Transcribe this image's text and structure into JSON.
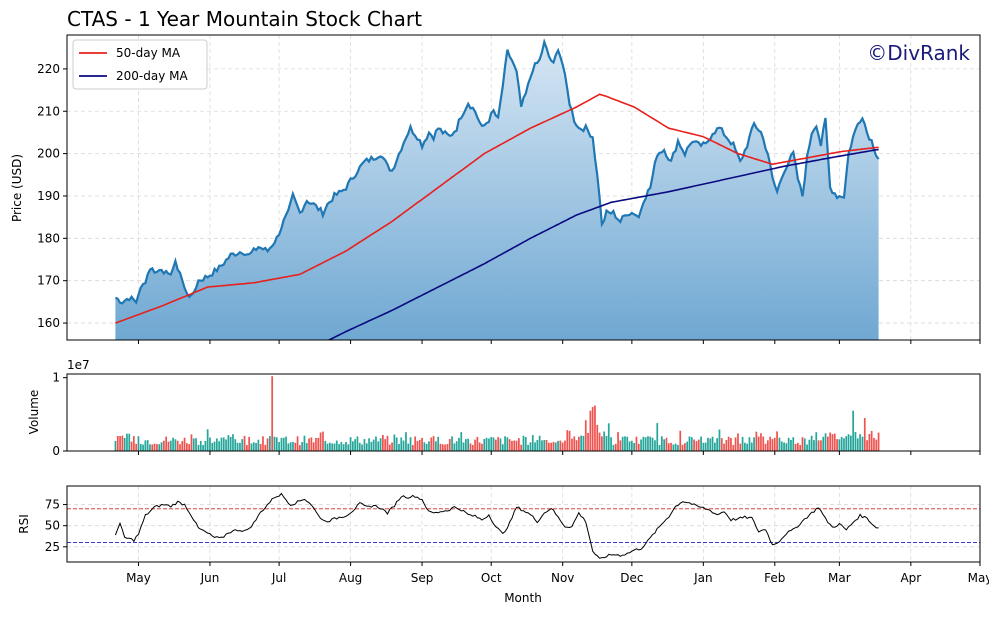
{
  "title": "CTAS - 1 Year Mountain Stock Chart",
  "watermark": "©DivRank",
  "colors": {
    "price_line": "#1f77b4",
    "fill_top": "#d6e6f4",
    "fill_bottom": "#6fa8d2",
    "ma50": "#e8201c",
    "ma200": "#0a0a80",
    "vol_up": "#26a69a",
    "vol_down": "#ef5350",
    "rsi_line": "#000000",
    "rsi_over": "#d62728",
    "rsi_under": "#1f1fd0",
    "grid": "#d9d9d9"
  },
  "chart_data": [
    {
      "type": "area",
      "name": "price",
      "ylabel": "Price (USD)",
      "ylim": [
        156,
        228
      ],
      "yticks": [
        160,
        170,
        180,
        190,
        200,
        210,
        220,
        230
      ],
      "x_range_days": [
        -21,
        375
      ],
      "grid": true,
      "legend_position": "top-left",
      "legend": [
        "50-day MA",
        "200-day MA"
      ],
      "price_anchors": [
        [
          0,
          166
        ],
        [
          3,
          165
        ],
        [
          6,
          166
        ],
        [
          9,
          165
        ],
        [
          10,
          167
        ],
        [
          13,
          170
        ],
        [
          15,
          173
        ],
        [
          18,
          172
        ],
        [
          20,
          173
        ],
        [
          23,
          171
        ],
        [
          26,
          174
        ],
        [
          28,
          172
        ],
        [
          30,
          168
        ],
        [
          33,
          166
        ],
        [
          36,
          170
        ],
        [
          40,
          171
        ],
        [
          45,
          173
        ],
        [
          50,
          176
        ],
        [
          55,
          177
        ],
        [
          58,
          176
        ],
        [
          62,
          178
        ],
        [
          66,
          177
        ],
        [
          70,
          180
        ],
        [
          73,
          184
        ],
        [
          75,
          186
        ],
        [
          77,
          190
        ],
        [
          80,
          186
        ],
        [
          83,
          189
        ],
        [
          86,
          188
        ],
        [
          90,
          186
        ],
        [
          92,
          188
        ],
        [
          95,
          190
        ],
        [
          98,
          191
        ],
        [
          100,
          192
        ],
        [
          105,
          196
        ],
        [
          108,
          198
        ],
        [
          112,
          199
        ],
        [
          115,
          200
        ],
        [
          118,
          197
        ],
        [
          120,
          196
        ],
        [
          123,
          200
        ],
        [
          126,
          204
        ],
        [
          128,
          206
        ],
        [
          131,
          204
        ],
        [
          133,
          202
        ],
        [
          136,
          205
        ],
        [
          138,
          204
        ],
        [
          140,
          206
        ],
        [
          142,
          205
        ],
        [
          145,
          204
        ],
        [
          148,
          206
        ],
        [
          150,
          209
        ],
        [
          153,
          212
        ],
        [
          156,
          210
        ],
        [
          159,
          206
        ],
        [
          162,
          208
        ],
        [
          164,
          210
        ],
        [
          166,
          208
        ],
        [
          168,
          216
        ],
        [
          170,
          224
        ],
        [
          172,
          222
        ],
        [
          174,
          219
        ],
        [
          176,
          211
        ],
        [
          178,
          214
        ],
        [
          181,
          220
        ],
        [
          184,
          222
        ],
        [
          186,
          226
        ],
        [
          188,
          223
        ],
        [
          190,
          221
        ],
        [
          192,
          225
        ],
        [
          194,
          221
        ],
        [
          197,
          212
        ],
        [
          199,
          208
        ],
        [
          201,
          206
        ],
        [
          204,
          206
        ],
        [
          207,
          204
        ],
        [
          210,
          190
        ],
        [
          211,
          183
        ],
        [
          213,
          186
        ],
        [
          216,
          186
        ],
        [
          219,
          184
        ],
        [
          222,
          186
        ],
        [
          225,
          186
        ],
        [
          227,
          185
        ],
        [
          229,
          189
        ],
        [
          232,
          192
        ],
        [
          235,
          200
        ],
        [
          238,
          201
        ],
        [
          241,
          198
        ],
        [
          244,
          203
        ],
        [
          247,
          200
        ],
        [
          250,
          203
        ],
        [
          253,
          202
        ],
        [
          256,
          202
        ],
        [
          259,
          205
        ],
        [
          262,
          206
        ],
        [
          265,
          204
        ],
        [
          268,
          202
        ],
        [
          271,
          198
        ],
        [
          274,
          202
        ],
        [
          277,
          207
        ],
        [
          280,
          205
        ],
        [
          283,
          200
        ],
        [
          285,
          194
        ],
        [
          287,
          191
        ],
        [
          290,
          196
        ],
        [
          292,
          198
        ],
        [
          294,
          200
        ],
        [
          296,
          194
        ],
        [
          298,
          190
        ],
        [
          300,
          199
        ],
        [
          302,
          205
        ],
        [
          304,
          207
        ],
        [
          306,
          202
        ],
        [
          308,
          208
        ],
        [
          310,
          192
        ],
        [
          313,
          190
        ],
        [
          316,
          190
        ],
        [
          318,
          200
        ],
        [
          320,
          204
        ],
        [
          322,
          207
        ],
        [
          324,
          209
        ],
        [
          326,
          205
        ],
        [
          328,
          203
        ],
        [
          330,
          200
        ],
        [
          331,
          199
        ]
      ],
      "ma50_anchors": [
        [
          0,
          160
        ],
        [
          20,
          164
        ],
        [
          40,
          168.5
        ],
        [
          60,
          169.5
        ],
        [
          80,
          171.5
        ],
        [
          100,
          177
        ],
        [
          120,
          184
        ],
        [
          140,
          192
        ],
        [
          160,
          200
        ],
        [
          180,
          206
        ],
        [
          200,
          211
        ],
        [
          210,
          214
        ],
        [
          213,
          213.5
        ],
        [
          225,
          211
        ],
        [
          240,
          206
        ],
        [
          255,
          204
        ],
        [
          270,
          200
        ],
        [
          285,
          197.5
        ],
        [
          300,
          199
        ],
        [
          315,
          200.5
        ],
        [
          331,
          201.5
        ]
      ],
      "ma200_anchors": [
        [
          89,
          155
        ],
        [
          100,
          158
        ],
        [
          120,
          163
        ],
        [
          140,
          168.5
        ],
        [
          160,
          174
        ],
        [
          180,
          180
        ],
        [
          200,
          185.5
        ],
        [
          215,
          188.5
        ],
        [
          240,
          191
        ],
        [
          265,
          194
        ],
        [
          290,
          197
        ],
        [
          310,
          199
        ],
        [
          331,
          201
        ]
      ]
    },
    {
      "type": "bar",
      "name": "volume",
      "ylabel": "Volume",
      "scale_label": "1e7",
      "ylim": [
        0,
        1.05
      ],
      "yticks": [
        0,
        1
      ],
      "spike_days": [
        [
          68,
          1.02,
          "down"
        ],
        [
          207,
          0.6,
          "down"
        ],
        [
          208,
          0.62,
          "down"
        ],
        [
          206,
          0.55,
          "down"
        ],
        [
          320,
          0.55,
          "up"
        ],
        [
          325,
          0.45,
          "down"
        ],
        [
          204,
          0.42,
          "down"
        ],
        [
          235,
          0.38,
          "up"
        ]
      ]
    },
    {
      "type": "line",
      "name": "rsi",
      "ylabel": "RSI",
      "xlabel": "Month",
      "ylim": [
        7,
        97
      ],
      "yticks": [
        25,
        50,
        75
      ],
      "overbought": 70,
      "oversold": 30,
      "rsi_anchors": [
        [
          0,
          40
        ],
        [
          2,
          52
        ],
        [
          4,
          36
        ],
        [
          8,
          33
        ],
        [
          10,
          40
        ],
        [
          13,
          62
        ],
        [
          17,
          72
        ],
        [
          21,
          75
        ],
        [
          24,
          73
        ],
        [
          27,
          78
        ],
        [
          30,
          75
        ],
        [
          33,
          62
        ],
        [
          36,
          47
        ],
        [
          40,
          41
        ],
        [
          43,
          36
        ],
        [
          46,
          35
        ],
        [
          49,
          42
        ],
        [
          53,
          45
        ],
        [
          57,
          44
        ],
        [
          60,
          53
        ],
        [
          63,
          66
        ],
        [
          66,
          75
        ],
        [
          69,
          84
        ],
        [
          72,
          87
        ],
        [
          76,
          75
        ],
        [
          79,
          78
        ],
        [
          82,
          82
        ],
        [
          85,
          75
        ],
        [
          88,
          62
        ],
        [
          91,
          55
        ],
        [
          94,
          57
        ],
        [
          97,
          60
        ],
        [
          100,
          62
        ],
        [
          103,
          68
        ],
        [
          106,
          76
        ],
        [
          109,
          72
        ],
        [
          112,
          74
        ],
        [
          115,
          71
        ],
        [
          118,
          65
        ],
        [
          121,
          74
        ],
        [
          124,
          85
        ],
        [
          127,
          84
        ],
        [
          130,
          85
        ],
        [
          133,
          81
        ],
        [
          136,
          66
        ],
        [
          139,
          65
        ],
        [
          141,
          67
        ],
        [
          144,
          68
        ],
        [
          147,
          72
        ],
        [
          150,
          69
        ],
        [
          153,
          63
        ],
        [
          156,
          61
        ],
        [
          159,
          57
        ],
        [
          162,
          63
        ],
        [
          165,
          49
        ],
        [
          168,
          40
        ],
        [
          171,
          53
        ],
        [
          174,
          72
        ],
        [
          177,
          68
        ],
        [
          180,
          63
        ],
        [
          183,
          55
        ],
        [
          186,
          65
        ],
        [
          189,
          71
        ],
        [
          192,
          60
        ],
        [
          195,
          49
        ],
        [
          198,
          49
        ],
        [
          201,
          65
        ],
        [
          204,
          55
        ],
        [
          207,
          20
        ],
        [
          210,
          10
        ],
        [
          213,
          14
        ],
        [
          216,
          16
        ],
        [
          219,
          15
        ],
        [
          222,
          17
        ],
        [
          225,
          21
        ],
        [
          228,
          23
        ],
        [
          231,
          32
        ],
        [
          234,
          42
        ],
        [
          237,
          52
        ],
        [
          240,
          61
        ],
        [
          243,
          73
        ],
        [
          246,
          79
        ],
        [
          249,
          77
        ],
        [
          252,
          73
        ],
        [
          255,
          71
        ],
        [
          258,
          68
        ],
        [
          261,
          63
        ],
        [
          264,
          67
        ],
        [
          267,
          57
        ],
        [
          270,
          58
        ],
        [
          273,
          60
        ],
        [
          276,
          59
        ],
        [
          279,
          43
        ],
        [
          282,
          46
        ],
        [
          285,
          27
        ],
        [
          288,
          32
        ],
        [
          291,
          41
        ],
        [
          294,
          45
        ],
        [
          296,
          50
        ],
        [
          299,
          58
        ],
        [
          302,
          65
        ],
        [
          305,
          72
        ],
        [
          308,
          58
        ],
        [
          311,
          48
        ],
        [
          314,
          52
        ],
        [
          317,
          45
        ],
        [
          320,
          54
        ],
        [
          323,
          62
        ],
        [
          326,
          59
        ],
        [
          329,
          50
        ],
        [
          331,
          47
        ]
      ]
    }
  ],
  "x_axis": {
    "ticks": [
      {
        "label": "May",
        "day": 10
      },
      {
        "label": "Jun",
        "day": 41
      },
      {
        "label": "Jul",
        "day": 71
      },
      {
        "label": "Aug",
        "day": 102
      },
      {
        "label": "Sep",
        "day": 133
      },
      {
        "label": "Oct",
        "day": 163
      },
      {
        "label": "Nov",
        "day": 194
      },
      {
        "label": "Dec",
        "day": 224
      },
      {
        "label": "Jan",
        "day": 255
      },
      {
        "label": "Feb",
        "day": 286
      },
      {
        "label": "Mar",
        "day": 314
      },
      {
        "label": "Apr",
        "day": 345
      },
      {
        "label": "May",
        "day": 375
      }
    ]
  }
}
